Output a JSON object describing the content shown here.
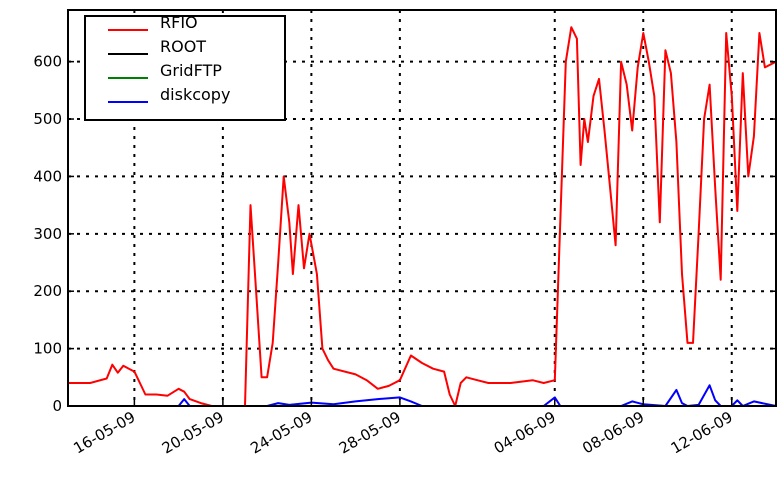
{
  "chart_data": {
    "type": "line",
    "title": "",
    "xlabel": "",
    "ylabel": "",
    "x_range": [
      "2009-05-13",
      "2009-06-14"
    ],
    "ylim": [
      0,
      690
    ],
    "y_ticks": [
      0,
      100,
      200,
      300,
      400,
      500,
      600
    ],
    "x_ticks": [
      {
        "date": "2009-05-16",
        "label": "16-05-09"
      },
      {
        "date": "2009-05-20",
        "label": "20-05-09"
      },
      {
        "date": "2009-05-24",
        "label": "24-05-09"
      },
      {
        "date": "2009-05-28",
        "label": "28-05-09"
      },
      {
        "date": "2009-06-04",
        "label": "04-06-09"
      },
      {
        "date": "2009-06-08",
        "label": "08-06-09"
      },
      {
        "date": "2009-06-12",
        "label": "12-06-09"
      }
    ],
    "grid": true,
    "legend_position": "top-left",
    "series": [
      {
        "name": "RFIO",
        "color": "#ff0000",
        "points": [
          [
            "2009-05-13",
            40
          ],
          [
            "2009-05-14",
            40
          ],
          [
            "2009-05-14T18:00",
            48
          ],
          [
            "2009-05-15",
            72
          ],
          [
            "2009-05-15T06:00",
            58
          ],
          [
            "2009-05-15T12:00",
            70
          ],
          [
            "2009-05-16",
            60
          ],
          [
            "2009-05-16T06:00",
            40
          ],
          [
            "2009-05-16T12:00",
            20
          ],
          [
            "2009-05-17",
            20
          ],
          [
            "2009-05-17T12:00",
            18
          ],
          [
            "2009-05-18",
            30
          ],
          [
            "2009-05-18T06:00",
            25
          ],
          [
            "2009-05-18T12:00",
            12
          ],
          [
            "2009-05-19",
            5
          ],
          [
            "2009-05-19T12:00",
            0
          ],
          [
            "2009-05-20",
            0
          ],
          [
            "2009-05-21",
            0
          ],
          [
            "2009-05-21T06:00",
            350
          ],
          [
            "2009-05-21T12:00",
            200
          ],
          [
            "2009-05-21T18:00",
            50
          ],
          [
            "2009-05-22",
            50
          ],
          [
            "2009-05-22T06:00",
            110
          ],
          [
            "2009-05-22T12:00",
            250
          ],
          [
            "2009-05-22T18:00",
            400
          ],
          [
            "2009-05-23",
            320
          ],
          [
            "2009-05-23T04:00",
            230
          ],
          [
            "2009-05-23T10:00",
            350
          ],
          [
            "2009-05-23T16:00",
            240
          ],
          [
            "2009-05-23T22:00",
            300
          ],
          [
            "2009-05-24T06:00",
            230
          ],
          [
            "2009-05-24T12:00",
            100
          ],
          [
            "2009-05-24T18:00",
            80
          ],
          [
            "2009-05-25",
            65
          ],
          [
            "2009-05-26",
            55
          ],
          [
            "2009-05-26T12:00",
            45
          ],
          [
            "2009-05-27",
            30
          ],
          [
            "2009-05-27T12:00",
            35
          ],
          [
            "2009-05-28",
            45
          ],
          [
            "2009-05-28T12:00",
            88
          ],
          [
            "2009-05-29",
            75
          ],
          [
            "2009-05-29T12:00",
            65
          ],
          [
            "2009-05-30",
            60
          ],
          [
            "2009-05-30T06:00",
            20
          ],
          [
            "2009-05-30T12:00",
            0
          ],
          [
            "2009-05-30T18:00",
            40
          ],
          [
            "2009-05-31",
            50
          ],
          [
            "2009-05-31T12:00",
            45
          ],
          [
            "2009-06-01",
            40
          ],
          [
            "2009-06-02",
            40
          ],
          [
            "2009-06-03",
            45
          ],
          [
            "2009-06-03T12:00",
            40
          ],
          [
            "2009-06-04",
            45
          ],
          [
            "2009-06-04T12:00",
            600
          ],
          [
            "2009-06-04T18:00",
            660
          ],
          [
            "2009-06-05",
            640
          ],
          [
            "2009-06-05T04:00",
            420
          ],
          [
            "2009-06-05T08:00",
            500
          ],
          [
            "2009-06-05T12:00",
            460
          ],
          [
            "2009-06-05T18:00",
            540
          ],
          [
            "2009-06-06",
            570
          ],
          [
            "2009-06-06T06:00",
            480
          ],
          [
            "2009-06-06T12:00",
            380
          ],
          [
            "2009-06-06T18:00",
            280
          ],
          [
            "2009-06-07",
            600
          ],
          [
            "2009-06-07T06:00",
            560
          ],
          [
            "2009-06-07T12:00",
            480
          ],
          [
            "2009-06-07T18:00",
            590
          ],
          [
            "2009-06-08",
            650
          ],
          [
            "2009-06-08T06:00",
            600
          ],
          [
            "2009-06-08T12:00",
            540
          ],
          [
            "2009-06-08T18:00",
            320
          ],
          [
            "2009-06-09",
            620
          ],
          [
            "2009-06-09T06:00",
            580
          ],
          [
            "2009-06-09T12:00",
            460
          ],
          [
            "2009-06-09T18:00",
            230
          ],
          [
            "2009-06-10",
            110
          ],
          [
            "2009-06-10T06:00",
            110
          ],
          [
            "2009-06-10T12:00",
            300
          ],
          [
            "2009-06-10T18:00",
            500
          ],
          [
            "2009-06-11",
            560
          ],
          [
            "2009-06-11T06:00",
            380
          ],
          [
            "2009-06-11T12:00",
            220
          ],
          [
            "2009-06-11T18:00",
            650
          ],
          [
            "2009-06-12",
            540
          ],
          [
            "2009-06-12T06:00",
            340
          ],
          [
            "2009-06-12T12:00",
            580
          ],
          [
            "2009-06-12T18:00",
            400
          ],
          [
            "2009-06-13",
            470
          ],
          [
            "2009-06-13T06:00",
            650
          ],
          [
            "2009-06-13T12:00",
            590
          ],
          [
            "2009-06-14",
            600
          ]
        ]
      },
      {
        "name": "ROOT",
        "color": "#000000",
        "points": [
          [
            "2009-05-13",
            0
          ],
          [
            "2009-06-14",
            0
          ]
        ]
      },
      {
        "name": "GridFTP",
        "color": "#008000",
        "points": [
          [
            "2009-05-13",
            0
          ],
          [
            "2009-06-14",
            0
          ]
        ]
      },
      {
        "name": "diskcopy",
        "color": "#0000ff",
        "points": [
          [
            "2009-05-13",
            0
          ],
          [
            "2009-05-18",
            0
          ],
          [
            "2009-05-18T06:00",
            12
          ],
          [
            "2009-05-18T12:00",
            0
          ],
          [
            "2009-05-22",
            0
          ],
          [
            "2009-05-22T12:00",
            5
          ],
          [
            "2009-05-23",
            2
          ],
          [
            "2009-05-24",
            6
          ],
          [
            "2009-05-25",
            3
          ],
          [
            "2009-05-26",
            8
          ],
          [
            "2009-05-27",
            12
          ],
          [
            "2009-05-28",
            15
          ],
          [
            "2009-05-28T12:00",
            8
          ],
          [
            "2009-05-29",
            0
          ],
          [
            "2009-06-03T12:00",
            0
          ],
          [
            "2009-06-04",
            15
          ],
          [
            "2009-06-04T06:00",
            0
          ],
          [
            "2009-06-07",
            0
          ],
          [
            "2009-06-07T12:00",
            8
          ],
          [
            "2009-06-08",
            3
          ],
          [
            "2009-06-09",
            0
          ],
          [
            "2009-06-09T12:00",
            28
          ],
          [
            "2009-06-09T18:00",
            5
          ],
          [
            "2009-06-10",
            0
          ],
          [
            "2009-06-10T12:00",
            2
          ],
          [
            "2009-06-11",
            36
          ],
          [
            "2009-06-11T06:00",
            10
          ],
          [
            "2009-06-11T12:00",
            0
          ],
          [
            "2009-06-12",
            0
          ],
          [
            "2009-06-12T06:00",
            10
          ],
          [
            "2009-06-12T12:00",
            0
          ],
          [
            "2009-06-13",
            8
          ],
          [
            "2009-06-14",
            0
          ]
        ]
      }
    ]
  }
}
